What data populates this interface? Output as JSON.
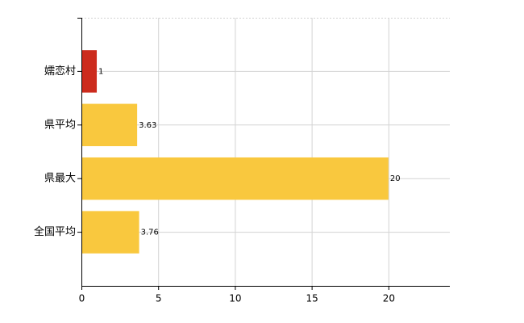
{
  "chart_data": {
    "type": "barh",
    "categories": [
      "嬬恋村",
      "県平均",
      "県最大",
      "全国平均"
    ],
    "values": [
      1,
      3.63,
      20,
      3.76
    ],
    "colors": [
      "#cc2b1d",
      "#f9c83e",
      "#f9c83e",
      "#f9c83e"
    ],
    "xlim": [
      0,
      24
    ],
    "xticks": [
      0,
      5,
      10,
      15,
      20
    ],
    "grid": true,
    "data_labels": true
  }
}
